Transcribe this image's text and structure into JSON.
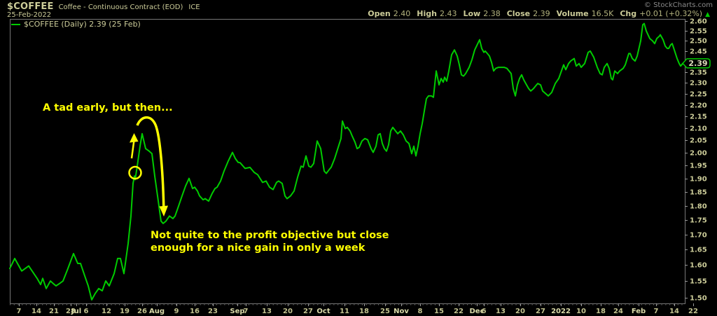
{
  "header": {
    "symbol": "$COFFEE",
    "description": "Coffee - Continuous Contract (EOD)",
    "exchange": "ICE",
    "date": "25-Feb-2022",
    "copyright": "© StockCharts.com",
    "quote": {
      "items": [
        {
          "label": "Open",
          "value": "2.40"
        },
        {
          "label": "High",
          "value": "2.43"
        },
        {
          "label": "Low",
          "value": "2.38"
        },
        {
          "label": "Close",
          "value": "2.39"
        },
        {
          "label": "Volume",
          "value": "16.5K"
        },
        {
          "label": "Chg",
          "value": "+0.01 (+0.32%)"
        }
      ],
      "direction_icon": "up-triangle"
    }
  },
  "legend": "$COFFEE (Daily) 2.39 (25 Feb)",
  "price_badge": "2.39",
  "annotations": {
    "note1": "A tad early, but then...",
    "note2_line1": "Not quite to the profit objective but close",
    "note2_line2": "enough for a nice gain in only a week",
    "color": "#FFFF00"
  },
  "colors": {
    "background": "#000000",
    "line": "#00CC00",
    "axis_text": "#CCCC99",
    "frame": "#777777",
    "badge_text": "#DDDDBB",
    "annotation": "#FFFF00",
    "copyright": "#8A8A8A"
  },
  "chart_data": {
    "type": "line",
    "title": "$COFFEE Coffee - Continuous Contract (EOD) ICE, Daily",
    "scale": "log",
    "ylim": [
      1.48,
      2.62
    ],
    "grid": false,
    "legend_position": "top-left",
    "y_ticks": [
      2.6,
      2.55,
      2.5,
      2.45,
      2.4,
      2.35,
      2.3,
      2.25,
      2.2,
      2.15,
      2.1,
      2.05,
      2.0,
      1.95,
      1.9,
      1.85,
      1.8,
      1.75,
      1.7,
      1.65,
      1.6,
      1.55,
      1.5
    ],
    "x_ticks": [
      {
        "x": 27,
        "label": "7"
      },
      {
        "x": 52,
        "label": "14"
      },
      {
        "x": 77,
        "label": "21"
      },
      {
        "x": 101,
        "label": "28"
      },
      {
        "x": 109,
        "label": "Jul",
        "bold": true
      },
      {
        "x": 123,
        "label": "6"
      },
      {
        "x": 152,
        "label": "12"
      },
      {
        "x": 178,
        "label": "19"
      },
      {
        "x": 203,
        "label": "26"
      },
      {
        "x": 224,
        "label": "Aug",
        "bold": true
      },
      {
        "x": 252,
        "label": "9"
      },
      {
        "x": 278,
        "label": "16"
      },
      {
        "x": 304,
        "label": "23"
      },
      {
        "x": 339,
        "label": "Sep",
        "bold": true
      },
      {
        "x": 351,
        "label": "7"
      },
      {
        "x": 381,
        "label": "13"
      },
      {
        "x": 411,
        "label": "20"
      },
      {
        "x": 440,
        "label": "27"
      },
      {
        "x": 462,
        "label": "Oct",
        "bold": true
      },
      {
        "x": 492,
        "label": "11"
      },
      {
        "x": 520,
        "label": "18"
      },
      {
        "x": 550,
        "label": "25"
      },
      {
        "x": 573,
        "label": "Nov",
        "bold": true
      },
      {
        "x": 600,
        "label": "8"
      },
      {
        "x": 627,
        "label": "15"
      },
      {
        "x": 655,
        "label": "22"
      },
      {
        "x": 681,
        "label": "Dec",
        "bold": true
      },
      {
        "x": 691,
        "label": "6"
      },
      {
        "x": 715,
        "label": "13"
      },
      {
        "x": 743,
        "label": "20"
      },
      {
        "x": 772,
        "label": "27"
      },
      {
        "x": 801,
        "label": "2022",
        "bold": true
      },
      {
        "x": 830,
        "label": "10"
      },
      {
        "x": 858,
        "label": "18"
      },
      {
        "x": 883,
        "label": "24"
      },
      {
        "x": 912,
        "label": "Feb",
        "bold": true
      },
      {
        "x": 937,
        "label": "7"
      },
      {
        "x": 963,
        "label": "14"
      },
      {
        "x": 990,
        "label": "22"
      }
    ],
    "last_price": 2.39,
    "series": [
      {
        "name": "$COFFEE (Daily)",
        "color": "#00CC00",
        "points": [
          [
            14,
            1.589
          ],
          [
            21,
            1.621
          ],
          [
            31,
            1.581
          ],
          [
            41,
            1.597
          ],
          [
            53,
            1.558
          ],
          [
            58,
            1.539
          ],
          [
            61,
            1.558
          ],
          [
            66,
            1.527
          ],
          [
            72,
            1.55
          ],
          [
            76,
            1.542
          ],
          [
            80,
            1.535
          ],
          [
            85,
            1.542
          ],
          [
            90,
            1.55
          ],
          [
            97,
            1.589
          ],
          [
            105,
            1.637
          ],
          [
            111,
            1.605
          ],
          [
            115,
            1.605
          ],
          [
            121,
            1.566
          ],
          [
            126,
            1.535
          ],
          [
            131,
            1.493
          ],
          [
            136,
            1.512
          ],
          [
            141,
            1.527
          ],
          [
            146,
            1.52
          ],
          [
            151,
            1.55
          ],
          [
            156,
            1.535
          ],
          [
            163,
            1.573
          ],
          [
            168,
            1.621
          ],
          [
            172,
            1.621
          ],
          [
            177,
            1.573
          ],
          [
            183,
            1.67
          ],
          [
            187,
            1.764
          ],
          [
            190,
            1.882
          ],
          [
            192,
            1.91
          ],
          [
            193,
            1.896
          ],
          [
            196,
            1.948
          ],
          [
            200,
            2.027
          ],
          [
            203,
            2.078
          ],
          [
            208,
            2.017
          ],
          [
            213,
            2.007
          ],
          [
            217,
            1.997
          ],
          [
            221,
            1.91
          ],
          [
            225,
            1.836
          ],
          [
            230,
            1.746
          ],
          [
            233,
            1.738
          ],
          [
            237,
            1.746
          ],
          [
            242,
            1.764
          ],
          [
            247,
            1.755
          ],
          [
            250,
            1.764
          ],
          [
            255,
            1.799
          ],
          [
            260,
            1.836
          ],
          [
            265,
            1.872
          ],
          [
            270,
            1.901
          ],
          [
            275,
            1.863
          ],
          [
            278,
            1.868
          ],
          [
            282,
            1.854
          ],
          [
            285,
            1.836
          ],
          [
            290,
            1.822
          ],
          [
            293,
            1.826
          ],
          [
            298,
            1.817
          ],
          [
            303,
            1.845
          ],
          [
            307,
            1.863
          ],
          [
            310,
            1.868
          ],
          [
            315,
            1.891
          ],
          [
            320,
            1.929
          ],
          [
            326,
            1.968
          ],
          [
            332,
            2.002
          ],
          [
            336,
            1.978
          ],
          [
            340,
            1.963
          ],
          [
            343,
            1.961
          ],
          [
            350,
            1.939
          ],
          [
            357,
            1.943
          ],
          [
            363,
            1.924
          ],
          [
            368,
            1.915
          ],
          [
            375,
            1.886
          ],
          [
            380,
            1.891
          ],
          [
            385,
            1.868
          ],
          [
            390,
            1.859
          ],
          [
            395,
            1.886
          ],
          [
            398,
            1.891
          ],
          [
            403,
            1.882
          ],
          [
            407,
            1.836
          ],
          [
            410,
            1.826
          ],
          [
            415,
            1.836
          ],
          [
            420,
            1.854
          ],
          [
            425,
            1.905
          ],
          [
            430,
            1.948
          ],
          [
            433,
            1.944
          ],
          [
            437,
            1.988
          ],
          [
            441,
            1.948
          ],
          [
            444,
            1.944
          ],
          [
            448,
            1.958
          ],
          [
            453,
            2.048
          ],
          [
            458,
            2.017
          ],
          [
            463,
            1.929
          ],
          [
            466,
            1.92
          ],
          [
            470,
            1.934
          ],
          [
            473,
            1.944
          ],
          [
            478,
            1.978
          ],
          [
            483,
            2.022
          ],
          [
            487,
            2.058
          ],
          [
            489,
            2.131
          ],
          [
            493,
            2.099
          ],
          [
            496,
            2.104
          ],
          [
            500,
            2.089
          ],
          [
            503,
            2.068
          ],
          [
            507,
            2.043
          ],
          [
            510,
            2.017
          ],
          [
            513,
            2.022
          ],
          [
            517,
            2.048
          ],
          [
            521,
            2.058
          ],
          [
            525,
            2.053
          ],
          [
            530,
            2.017
          ],
          [
            533,
            2.002
          ],
          [
            537,
            2.027
          ],
          [
            540,
            2.073
          ],
          [
            543,
            2.078
          ],
          [
            546,
            2.038
          ],
          [
            549,
            2.017
          ],
          [
            552,
            2.007
          ],
          [
            555,
            2.033
          ],
          [
            558,
            2.089
          ],
          [
            561,
            2.104
          ],
          [
            565,
            2.089
          ],
          [
            568,
            2.078
          ],
          [
            572,
            2.089
          ],
          [
            576,
            2.073
          ],
          [
            580,
            2.048
          ],
          [
            584,
            2.038
          ],
          [
            588,
            1.997
          ],
          [
            591,
            2.027
          ],
          [
            594,
            1.988
          ],
          [
            597,
            2.027
          ],
          [
            600,
            2.078
          ],
          [
            603,
            2.12
          ],
          [
            606,
            2.174
          ],
          [
            609,
            2.228
          ],
          [
            612,
            2.24
          ],
          [
            616,
            2.24
          ],
          [
            619,
            2.234
          ],
          [
            623,
            2.354
          ],
          [
            627,
            2.29
          ],
          [
            630,
            2.319
          ],
          [
            633,
            2.302
          ],
          [
            635,
            2.325
          ],
          [
            638,
            2.307
          ],
          [
            641,
            2.354
          ],
          [
            645,
            2.431
          ],
          [
            649,
            2.455
          ],
          [
            653,
            2.425
          ],
          [
            656,
            2.383
          ],
          [
            659,
            2.336
          ],
          [
            662,
            2.33
          ],
          [
            665,
            2.342
          ],
          [
            670,
            2.371
          ],
          [
            674,
            2.407
          ],
          [
            678,
            2.455
          ],
          [
            685,
            2.505
          ],
          [
            688,
            2.462
          ],
          [
            691,
            2.443
          ],
          [
            693,
            2.449
          ],
          [
            696,
            2.437
          ],
          [
            699,
            2.425
          ],
          [
            702,
            2.395
          ],
          [
            705,
            2.354
          ],
          [
            708,
            2.366
          ],
          [
            712,
            2.371
          ],
          [
            716,
            2.371
          ],
          [
            720,
            2.371
          ],
          [
            724,
            2.366
          ],
          [
            727,
            2.354
          ],
          [
            730,
            2.342
          ],
          [
            733,
            2.273
          ],
          [
            736,
            2.24
          ],
          [
            739,
            2.29
          ],
          [
            742,
            2.319
          ],
          [
            745,
            2.336
          ],
          [
            748,
            2.313
          ],
          [
            752,
            2.29
          ],
          [
            755,
            2.273
          ],
          [
            758,
            2.262
          ],
          [
            762,
            2.273
          ],
          [
            765,
            2.285
          ],
          [
            768,
            2.296
          ],
          [
            772,
            2.29
          ],
          [
            775,
            2.262
          ],
          [
            779,
            2.251
          ],
          [
            783,
            2.24
          ],
          [
            788,
            2.256
          ],
          [
            793,
            2.296
          ],
          [
            798,
            2.319
          ],
          [
            805,
            2.383
          ],
          [
            808,
            2.36
          ],
          [
            812,
            2.389
          ],
          [
            815,
            2.401
          ],
          [
            820,
            2.413
          ],
          [
            823,
            2.377
          ],
          [
            827,
            2.389
          ],
          [
            830,
            2.371
          ],
          [
            835,
            2.389
          ],
          [
            840,
            2.443
          ],
          [
            843,
            2.449
          ],
          [
            848,
            2.419
          ],
          [
            853,
            2.371
          ],
          [
            857,
            2.342
          ],
          [
            860,
            2.336
          ],
          [
            863,
            2.371
          ],
          [
            867,
            2.389
          ],
          [
            870,
            2.366
          ],
          [
            873,
            2.319
          ],
          [
            875,
            2.313
          ],
          [
            878,
            2.354
          ],
          [
            882,
            2.342
          ],
          [
            885,
            2.354
          ],
          [
            890,
            2.366
          ],
          [
            893,
            2.383
          ],
          [
            898,
            2.437
          ],
          [
            900,
            2.437
          ],
          [
            903,
            2.413
          ],
          [
            907,
            2.401
          ],
          [
            910,
            2.425
          ],
          [
            915,
            2.499
          ],
          [
            918,
            2.581
          ],
          [
            920,
            2.587
          ],
          [
            923,
            2.549
          ],
          [
            928,
            2.511
          ],
          [
            932,
            2.499
          ],
          [
            935,
            2.486
          ],
          [
            938,
            2.511
          ],
          [
            942,
            2.524
          ],
          [
            943,
            2.53
          ],
          [
            947,
            2.505
          ],
          [
            950,
            2.474
          ],
          [
            953,
            2.462
          ],
          [
            955,
            2.462
          ],
          [
            958,
            2.48
          ],
          [
            960,
            2.486
          ],
          [
            963,
            2.455
          ],
          [
            967,
            2.413
          ],
          [
            970,
            2.389
          ],
          [
            972,
            2.377
          ],
          [
            975,
            2.389
          ],
          [
            977,
            2.39
          ]
        ]
      }
    ]
  }
}
